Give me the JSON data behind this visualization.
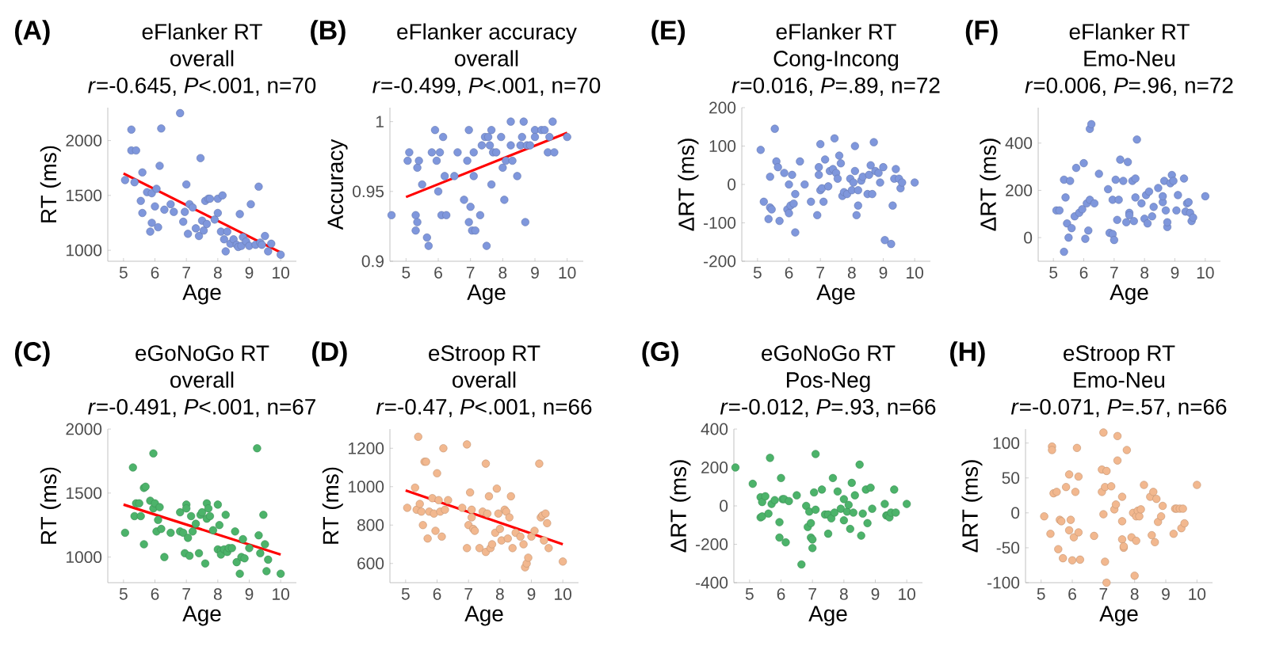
{
  "chart_data": [
    {
      "type": "scatter",
      "title": "eFlanker RT",
      "subtitle": "overall",
      "annotations": [
        "(A)",
        "*r*=-0.645, *P*<.001, n=70"
      ],
      "xlabel": "Age",
      "ylabel": "RT (ms)",
      "xlim": [
        4.5,
        10.5
      ],
      "xticks": [
        5,
        6,
        7,
        8,
        9,
        10
      ],
      "ylim": [
        900,
        2300
      ],
      "yticks": [
        1000,
        1500,
        2000
      ],
      "series": [
        {
          "marker": "circle",
          "color": "#7f97dc",
          "x": [
            5.05,
            5.25,
            5.25,
            5.4,
            5.35,
            5.6,
            5.55,
            5.6,
            5.75,
            5.85,
            5.9,
            5.9,
            6.0,
            6.05,
            6.1,
            6.15,
            6.2,
            6.3,
            6.5,
            6.6,
            6.8,
            6.9,
            6.95,
            7.0,
            7.05,
            7.1,
            7.2,
            7.3,
            7.4,
            7.45,
            7.5,
            7.55,
            7.6,
            7.65,
            7.7,
            7.75,
            7.9,
            8.0,
            8.0,
            8.1,
            8.15,
            8.2,
            8.25,
            8.3,
            8.4,
            8.5,
            8.6,
            8.65,
            8.7,
            8.75,
            8.8,
            8.9,
            9.0,
            9.05,
            9.2,
            9.3,
            9.35,
            9.4,
            9.5,
            9.6,
            9.7,
            10.0
          ],
          "values": [
            1640,
            2100,
            1910,
            1910,
            1620,
            1710,
            1450,
            1340,
            1530,
            1170,
            1520,
            1250,
            1400,
            1560,
            1210,
            1770,
            2110,
            1370,
            1420,
            1350,
            2250,
            1260,
            1350,
            1600,
            1150,
            1420,
            1390,
            1200,
            1130,
            1840,
            1270,
            1180,
            1450,
            1240,
            1470,
            1470,
            1280,
            1340,
            1470,
            1170,
            1500,
            1100,
            990,
            1170,
            1060,
            1100,
            1050,
            1030,
            1330,
            1040,
            1120,
            1080,
            1040,
            1420,
            1050,
            1580,
            1070,
            1050,
            1130,
            990,
            1060,
            960
          ]
        },
        {
          "type": "line",
          "marker": "none",
          "color": "#ff0000",
          "x": [
            5,
            10
          ],
          "values": [
            1700,
            980
          ]
        }
      ]
    },
    {
      "type": "scatter",
      "title": "eFlanker accuracy",
      "subtitle": "overall",
      "annotations": [
        "(B)",
        "*r*=-0.499, *P*<.001, n=70"
      ],
      "xlabel": "Age",
      "ylabel": "Accuracy",
      "xlim": [
        4.5,
        10.5
      ],
      "xticks": [
        5,
        6,
        7,
        8,
        9,
        10
      ],
      "ylim": [
        0.9,
        1.01
      ],
      "yticks": [
        0.9,
        0.95,
        1
      ],
      "series": [
        {
          "marker": "circle",
          "color": "#7f97dc",
          "x": [
            4.55,
            5.05,
            5.1,
            5.3,
            5.3,
            5.35,
            5.35,
            5.4,
            5.5,
            5.65,
            5.7,
            5.8,
            5.9,
            5.95,
            6.0,
            6.05,
            6.15,
            6.1,
            6.25,
            6.2,
            6.5,
            6.6,
            6.8,
            6.9,
            6.95,
            6.95,
            7.0,
            7.05,
            7.1,
            7.1,
            7.15,
            7.3,
            7.35,
            7.45,
            7.5,
            7.55,
            7.6,
            7.65,
            7.65,
            7.7,
            7.8,
            7.95,
            8.0,
            8.05,
            8.1,
            8.25,
            8.25,
            8.3,
            8.45,
            8.55,
            8.6,
            8.65,
            8.7,
            8.75,
            8.85,
            9.0,
            9.0,
            9.2,
            9.3,
            9.4,
            9.45,
            9.55,
            9.6,
            10.0
          ],
          "values": [
            0.933,
            0.972,
            0.978,
            0.933,
            0.922,
            0.967,
            0.928,
            0.972,
            0.955,
            0.917,
            0.911,
            0.978,
            0.994,
            0.972,
            0.95,
            0.978,
            0.989,
            0.933,
            0.933,
            0.961,
            0.961,
            0.978,
            0.944,
            0.972,
            0.994,
            0.928,
            0.939,
            0.922,
            0.978,
            0.961,
            0.922,
            0.933,
            0.983,
            0.989,
            0.911,
            0.989,
            0.983,
            0.994,
            0.955,
            0.978,
            0.978,
            0.989,
            0.967,
            0.944,
            0.972,
            1.0,
            0.983,
            0.972,
            0.961,
            0.983,
            0.989,
            1.0,
            0.928,
            0.983,
            0.983,
            0.994,
            0.989,
            0.994,
            0.994,
            0.978,
            0.989,
            1.0,
            0.978,
            0.989
          ]
        },
        {
          "type": "line",
          "marker": "none",
          "color": "#ff0000",
          "x": [
            5,
            10
          ],
          "values": [
            0.946,
            0.992
          ]
        }
      ]
    },
    {
      "type": "scatter",
      "title": "eFlanker RT",
      "subtitle": "Cong-Incong",
      "annotations": [
        "(E)",
        "*r*=0.016, *P*=.89, n=72"
      ],
      "xlabel": "Age",
      "ylabel": "ΔRT (ms)",
      "xlim": [
        4.5,
        10.5
      ],
      "xticks": [
        5,
        6,
        7,
        8,
        9,
        10
      ],
      "ylim": [
        -200,
        200
      ],
      "yticks": [
        -200,
        -100,
        0,
        100,
        200
      ],
      "series": [
        {
          "marker": "circle",
          "color": "#7f97dc",
          "x": [
            5.1,
            5.2,
            5.35,
            5.4,
            5.4,
            5.45,
            5.55,
            5.6,
            5.65,
            5.7,
            5.85,
            5.95,
            6.0,
            6.0,
            6.05,
            6.1,
            6.15,
            6.2,
            6.2,
            6.35,
            6.5,
            6.7,
            6.9,
            6.95,
            6.95,
            7.0,
            7.0,
            7.05,
            7.1,
            7.15,
            7.25,
            7.3,
            7.4,
            7.45,
            7.5,
            7.55,
            7.6,
            7.65,
            7.7,
            7.75,
            7.85,
            7.95,
            8.0,
            8.05,
            8.1,
            8.1,
            8.15,
            8.2,
            8.2,
            8.3,
            8.35,
            8.5,
            8.55,
            8.6,
            8.65,
            8.7,
            8.75,
            8.85,
            8.9,
            9.0,
            9.05,
            9.25,
            9.3,
            9.35,
            9.4,
            9.5,
            9.55,
            9.6,
            10.0
          ],
          "values": [
            90,
            -45,
            -90,
            -60,
            20,
            -65,
            145,
            60,
            45,
            -95,
            30,
            -65,
            -75,
            0,
            -55,
            25,
            -50,
            -25,
            -125,
            60,
            0,
            -45,
            -80,
            45,
            25,
            -15,
            105,
            -10,
            -45,
            65,
            -5,
            35,
            40,
            120,
            30,
            15,
            75,
            55,
            -30,
            -20,
            -25,
            15,
            -15,
            5,
            100,
            35,
            -80,
            -55,
            -15,
            10,
            20,
            -25,
            25,
            50,
            -25,
            110,
            35,
            30,
            5,
            45,
            -145,
            -155,
            -55,
            15,
            40,
            15,
            -10,
            5,
            5
          ]
        }
      ]
    },
    {
      "type": "scatter",
      "title": "eFlanker RT",
      "subtitle": "Emo-Neu",
      "annotations": [
        "(F)",
        "*r*=0.006, *P*=.96, n=72"
      ],
      "xlabel": "Age",
      "ylabel": "ΔRT (ms)",
      "xlim": [
        4.5,
        10.5
      ],
      "xticks": [
        5,
        6,
        7,
        8,
        9,
        10
      ],
      "ylim": [
        -100,
        550
      ],
      "yticks": [
        0,
        200,
        400
      ],
      "series": [
        {
          "marker": "circle",
          "color": "#7f97dc",
          "x": [
            5.1,
            5.2,
            5.35,
            5.35,
            5.4,
            5.45,
            5.5,
            5.55,
            5.6,
            5.7,
            5.75,
            5.85,
            5.95,
            6.0,
            6.05,
            6.1,
            6.15,
            6.2,
            6.2,
            6.25,
            6.35,
            6.5,
            6.8,
            6.85,
            6.95,
            6.95,
            7.0,
            7.05,
            7.1,
            7.15,
            7.2,
            7.3,
            7.4,
            7.45,
            7.5,
            7.5,
            7.6,
            7.65,
            7.7,
            7.7,
            7.75,
            7.9,
            8.0,
            8.05,
            8.1,
            8.15,
            8.25,
            8.3,
            8.45,
            8.6,
            8.6,
            8.65,
            8.7,
            8.75,
            8.75,
            8.85,
            8.9,
            8.95,
            9.05,
            9.1,
            9.3,
            9.35,
            9.4,
            9.45,
            9.5,
            9.55,
            9.6,
            10.0
          ],
          "values": [
            115,
            115,
            -60,
            245,
            170,
            60,
            0,
            240,
            40,
            90,
            295,
            105,
            120,
            315,
            -5,
            145,
            30,
            160,
            460,
            480,
            145,
            270,
            205,
            20,
            15,
            160,
            -10,
            245,
            75,
            160,
            330,
            240,
            65,
            320,
            105,
            95,
            240,
            70,
            250,
            170,
            415,
            145,
            80,
            180,
            60,
            195,
            90,
            130,
            210,
            150,
            175,
            240,
            115,
            45,
            65,
            230,
            265,
            240,
            115,
            180,
            250,
            110,
            145,
            150,
            105,
            70,
            85,
            175
          ]
        }
      ]
    },
    {
      "type": "scatter",
      "title": "eGoNoGo RT",
      "subtitle": "overall",
      "annotations": [
        "(C)",
        "*r*=-0.491, *P*<.001, n=67"
      ],
      "xlabel": "Age",
      "ylabel": "RT (ms)",
      "xlim": [
        4.5,
        10.5
      ],
      "xticks": [
        5,
        6,
        7,
        8,
        9,
        10
      ],
      "ylim": [
        800,
        2000
      ],
      "yticks": [
        1000,
        1500,
        2000
      ],
      "series": [
        {
          "marker": "circle",
          "color": "#4cb36a",
          "x": [
            5.05,
            5.3,
            5.35,
            5.4,
            5.5,
            5.55,
            5.65,
            5.7,
            5.65,
            5.85,
            5.95,
            5.95,
            6.0,
            6.05,
            6.1,
            6.15,
            6.2,
            6.3,
            6.5,
            6.8,
            6.8,
            6.9,
            6.95,
            7.0,
            7.0,
            7.05,
            7.1,
            7.15,
            7.2,
            7.3,
            7.4,
            7.45,
            7.5,
            7.6,
            7.65,
            7.65,
            7.7,
            7.75,
            7.85,
            8.0,
            8.0,
            8.05,
            8.1,
            8.1,
            8.2,
            8.25,
            8.3,
            8.35,
            8.45,
            8.55,
            8.6,
            8.7,
            8.75,
            8.8,
            8.85,
            9.0,
            9.25,
            9.3,
            9.35,
            9.45,
            9.5,
            9.55,
            9.6,
            10.0
          ],
          "values": [
            1190,
            1700,
            1320,
            1420,
            1420,
            1320,
            1540,
            1550,
            1100,
            1440,
            1810,
            1380,
            1420,
            1200,
            1290,
            1390,
            1220,
            1000,
            1190,
            1350,
            1200,
            1190,
            1030,
            1410,
            1380,
            1150,
            1010,
            1320,
            1200,
            1260,
            1030,
            1330,
            1350,
            950,
            1420,
            1300,
            1380,
            1320,
            1210,
            1060,
            1410,
            1250,
            1050,
            1020,
            1060,
            1330,
            1040,
            1070,
            1070,
            1200,
            960,
            870,
            1000,
            1140,
            990,
            1070,
            1850,
            1170,
            1030,
            1330,
            1100,
            890,
            980,
            870
          ]
        },
        {
          "type": "line",
          "marker": "none",
          "color": "#ff0000",
          "x": [
            5,
            10
          ],
          "values": [
            1410,
            1020
          ]
        }
      ]
    },
    {
      "type": "scatter",
      "title": "eStroop RT",
      "subtitle": "overall",
      "annotations": [
        "(D)",
        "*r*=-0.47, *P*<.001, n=66"
      ],
      "xlabel": "Age",
      "ylabel": "RT (ms)",
      "xlim": [
        4.5,
        10.5
      ],
      "xticks": [
        5,
        6,
        7,
        8,
        9,
        10
      ],
      "ylim": [
        500,
        1300
      ],
      "yticks": [
        600,
        800,
        1000,
        1200
      ],
      "series": [
        {
          "marker": "circle",
          "color": "#f2b88f",
          "x": [
            5.05,
            5.3,
            5.35,
            5.4,
            5.45,
            5.5,
            5.55,
            5.6,
            5.65,
            5.7,
            5.75,
            5.85,
            5.9,
            5.95,
            6.0,
            6.05,
            6.1,
            6.15,
            6.2,
            6.25,
            6.35,
            6.8,
            6.95,
            6.95,
            7.0,
            7.05,
            7.1,
            7.1,
            7.15,
            7.2,
            7.35,
            7.45,
            7.55,
            7.55,
            7.6,
            7.65,
            7.7,
            7.75,
            7.85,
            7.9,
            7.95,
            8.0,
            8.05,
            8.15,
            8.2,
            8.25,
            8.3,
            8.35,
            8.4,
            8.5,
            8.65,
            8.75,
            8.8,
            8.85,
            8.9,
            9.0,
            9.1,
            9.25,
            9.3,
            9.35,
            9.4,
            9.45,
            9.5,
            9.55,
            10.0
          ],
          "values": [
            890,
            995,
            880,
            1260,
            910,
            870,
            800,
            1130,
            1130,
            730,
            870,
            940,
            860,
            770,
            1070,
            930,
            870,
            740,
            1200,
            880,
            930,
            890,
            1220,
            680,
            800,
            970,
            880,
            840,
            780,
            770,
            680,
            870,
            660,
            1120,
            860,
            950,
            680,
            700,
            760,
            990,
            860,
            780,
            720,
            880,
            870,
            730,
            840,
            950,
            680,
            760,
            740,
            700,
            580,
            600,
            630,
            740,
            770,
            1120,
            840,
            850,
            720,
            860,
            810,
            680,
            610
          ]
        },
        {
          "type": "line",
          "marker": "none",
          "color": "#ff0000",
          "x": [
            5,
            10
          ],
          "values": [
            980,
            700
          ]
        }
      ]
    },
    {
      "type": "scatter",
      "title": "eGoNoGo RT",
      "subtitle": "Pos-Neg",
      "annotations": [
        "(G)",
        "*r*=-0.012, *P*=.93, n=66"
      ],
      "xlabel": "Age",
      "ylabel": "ΔRT (ms)",
      "xlim": [
        4.5,
        10.5
      ],
      "xticks": [
        5,
        6,
        7,
        8,
        9,
        10
      ],
      "ylim": [
        -400,
        400
      ],
      "yticks": [
        -400,
        -200,
        0,
        200,
        400
      ],
      "series": [
        {
          "marker": "circle",
          "color": "#4cb36a",
          "x": [
            4.55,
            5.1,
            5.35,
            5.35,
            5.4,
            5.4,
            5.5,
            5.6,
            5.65,
            5.7,
            5.8,
            5.95,
            5.95,
            6.0,
            6.05,
            6.1,
            6.15,
            6.25,
            6.5,
            6.65,
            6.8,
            6.85,
            6.9,
            6.95,
            6.95,
            7.0,
            7.0,
            7.05,
            7.1,
            7.1,
            7.3,
            7.4,
            7.5,
            7.5,
            7.6,
            7.65,
            7.7,
            7.8,
            7.9,
            8.0,
            8.0,
            8.1,
            8.15,
            8.2,
            8.25,
            8.3,
            8.35,
            8.5,
            8.55,
            8.6,
            8.7,
            8.75,
            8.85,
            8.9,
            9.3,
            9.35,
            9.4,
            9.45,
            9.5,
            9.6,
            9.65,
            10.0
          ],
          "values": [
            200,
            115,
            -60,
            45,
            20,
            -55,
            50,
            -40,
            250,
            10,
            30,
            -85,
            -165,
            145,
            35,
            35,
            -190,
            25,
            55,
            -305,
            0,
            -110,
            -30,
            -90,
            -165,
            -175,
            -220,
            70,
            270,
            -20,
            85,
            -45,
            -145,
            -45,
            -65,
            145,
            -35,
            75,
            -15,
            35,
            -75,
            -30,
            5,
            -120,
            120,
            -35,
            55,
            215,
            -155,
            -40,
            85,
            -90,
            95,
            -15,
            10,
            -50,
            -50,
            -60,
            -35,
            85,
            -35,
            10
          ]
        }
      ]
    },
    {
      "type": "scatter",
      "title": "eStroop RT",
      "subtitle": "Emo-Neu",
      "annotations": [
        "(H)",
        "*r*=-0.071, *P*=.57, n=66"
      ],
      "xlabel": "Age",
      "ylabel": "ΔRT (ms)",
      "xlim": [
        4.5,
        10.5
      ],
      "xticks": [
        5,
        6,
        7,
        8,
        9,
        10
      ],
      "ylim": [
        -100,
        120
      ],
      "yticks": [
        -100,
        -50,
        0,
        50,
        100
      ],
      "series": [
        {
          "marker": "circle",
          "color": "#f2b88f",
          "x": [
            5.1,
            5.3,
            5.35,
            5.35,
            5.4,
            5.5,
            5.55,
            5.6,
            5.65,
            5.7,
            5.8,
            5.9,
            5.9,
            5.95,
            6.0,
            6.05,
            6.1,
            6.15,
            6.2,
            6.2,
            6.25,
            6.7,
            6.95,
            6.95,
            7.0,
            7.0,
            7.05,
            7.05,
            7.1,
            7.1,
            7.25,
            7.35,
            7.4,
            7.45,
            7.45,
            7.6,
            7.6,
            7.6,
            7.65,
            7.65,
            7.75,
            7.9,
            7.95,
            8.0,
            8.05,
            8.05,
            8.1,
            8.15,
            8.2,
            8.3,
            8.5,
            8.55,
            8.6,
            8.65,
            8.7,
            8.75,
            8.85,
            8.9,
            9.25,
            9.3,
            9.35,
            9.45,
            9.5,
            9.55,
            9.6,
            10.0
          ],
          "values": [
            -5,
            -30,
            95,
            90,
            28,
            30,
            -52,
            -10,
            -12,
            -65,
            37,
            55,
            -25,
            -10,
            -68,
            -35,
            30,
            93,
            52,
            -28,
            -67,
            -33,
            62,
            30,
            115,
            -2,
            -70,
            37,
            -100,
            60,
            38,
            5,
            12,
            75,
            110,
            23,
            -12,
            -38,
            -50,
            -48,
            90,
            -35,
            0,
            -90,
            -40,
            -5,
            3,
            -5,
            5,
            40,
            23,
            -32,
            30,
            -42,
            20,
            -13,
            -5,
            10,
            -30,
            6,
            6,
            6,
            -22,
            6,
            -15,
            40
          ]
        }
      ]
    }
  ]
}
